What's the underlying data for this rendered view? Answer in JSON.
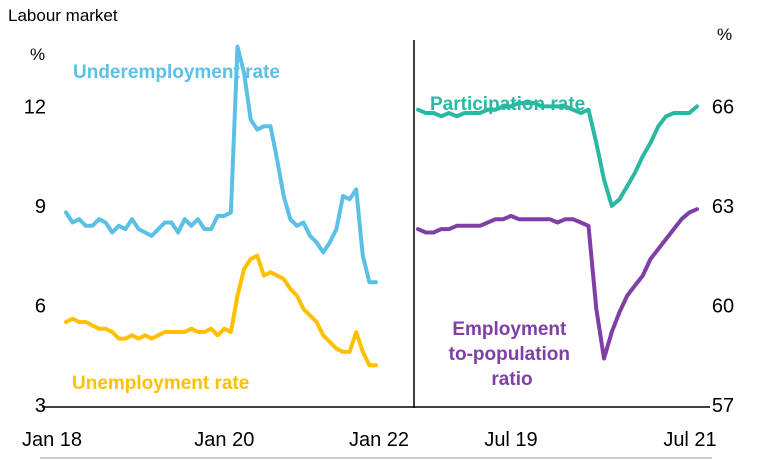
{
  "title": "Labour market",
  "colors": {
    "underemployment": "#5BC0E6",
    "unemployment": "#FFC000",
    "participation": "#2BB8A3",
    "employment": "#7F3FA6",
    "axis": "#000000",
    "bottom_rule": "#9a9a9a"
  },
  "chart_data": [
    {
      "type": "line",
      "title": "",
      "ylabel": "%",
      "ylim": [
        3,
        14
      ],
      "yticks": [
        "3",
        "6",
        "9",
        "12"
      ],
      "ytick_values": [
        3,
        6,
        9,
        12
      ],
      "xticks": [
        "Jan 18",
        "Jan 20",
        "Jan 22"
      ],
      "xtick_values": [
        0,
        24,
        48
      ],
      "x_range": [
        0,
        47
      ],
      "series": [
        {
          "name": "Underemployment rate",
          "color_key": "underemployment",
          "x": [
            0,
            1,
            2,
            3,
            4,
            5,
            6,
            7,
            8,
            9,
            10,
            11,
            12,
            13,
            14,
            15,
            16,
            17,
            18,
            19,
            20,
            21,
            22,
            23,
            24,
            25,
            26,
            27,
            28,
            29,
            30,
            31,
            32,
            33,
            34,
            35,
            36,
            37,
            38,
            39,
            40,
            41,
            42,
            43,
            44,
            45,
            46,
            47
          ],
          "values": [
            8.8,
            8.5,
            8.6,
            8.4,
            8.4,
            8.6,
            8.5,
            8.2,
            8.4,
            8.3,
            8.6,
            8.3,
            8.2,
            8.1,
            8.3,
            8.5,
            8.5,
            8.2,
            8.6,
            8.4,
            8.6,
            8.3,
            8.3,
            8.7,
            8.7,
            8.8,
            13.8,
            13.0,
            11.6,
            11.3,
            11.4,
            11.4,
            10.4,
            9.3,
            8.6,
            8.4,
            8.5,
            8.1,
            7.9,
            7.6,
            7.9,
            8.3,
            9.3,
            9.2,
            9.5,
            7.5,
            6.7,
            6.7
          ]
        },
        {
          "name": "Unemployment rate",
          "color_key": "unemployment",
          "x": [
            0,
            1,
            2,
            3,
            4,
            5,
            6,
            7,
            8,
            9,
            10,
            11,
            12,
            13,
            14,
            15,
            16,
            17,
            18,
            19,
            20,
            21,
            22,
            23,
            24,
            25,
            26,
            27,
            28,
            29,
            30,
            31,
            32,
            33,
            34,
            35,
            36,
            37,
            38,
            39,
            40,
            41,
            42,
            43,
            44,
            45,
            46,
            47
          ],
          "values": [
            5.5,
            5.6,
            5.5,
            5.5,
            5.4,
            5.3,
            5.3,
            5.2,
            5.0,
            5.0,
            5.1,
            5.0,
            5.1,
            5.0,
            5.1,
            5.2,
            5.2,
            5.2,
            5.2,
            5.3,
            5.2,
            5.2,
            5.3,
            5.1,
            5.3,
            5.2,
            6.3,
            7.1,
            7.4,
            7.5,
            6.9,
            7.0,
            6.9,
            6.8,
            6.5,
            6.3,
            5.9,
            5.7,
            5.5,
            5.1,
            4.9,
            4.7,
            4.6,
            4.6,
            5.2,
            4.6,
            4.2,
            4.2
          ]
        }
      ]
    },
    {
      "type": "line",
      "title": "",
      "ylabel": "%",
      "ylim": [
        57,
        68
      ],
      "yticks": [
        "57",
        "60",
        "63",
        "66"
      ],
      "ytick_values": [
        57,
        60,
        63,
        66
      ],
      "xticks": [
        "Jul 19",
        "Jul 21"
      ],
      "xtick_values": [
        12,
        36
      ],
      "x_range": [
        0,
        36
      ],
      "series": [
        {
          "name": "Participation rate",
          "color_key": "participation",
          "x": [
            0,
            1,
            2,
            3,
            4,
            5,
            6,
            7,
            8,
            9,
            10,
            11,
            12,
            13,
            14,
            15,
            16,
            17,
            18,
            19,
            20,
            21,
            22,
            23,
            24,
            25,
            26,
            27,
            28,
            29,
            30,
            31,
            32,
            33,
            34,
            35,
            36
          ],
          "values": [
            65.9,
            65.8,
            65.8,
            65.7,
            65.8,
            65.7,
            65.8,
            65.8,
            65.8,
            65.9,
            65.9,
            66.0,
            66.0,
            66.1,
            66.1,
            66.1,
            66.0,
            66.0,
            66.0,
            66.0,
            65.9,
            65.8,
            65.9,
            64.9,
            63.8,
            63.0,
            63.2,
            63.6,
            64.0,
            64.5,
            64.9,
            65.4,
            65.7,
            65.8,
            65.8,
            65.8,
            66.0
          ]
        },
        {
          "name": "Employment to-population ratio",
          "color_key": "employment",
          "x": [
            0,
            1,
            2,
            3,
            4,
            5,
            6,
            7,
            8,
            9,
            10,
            11,
            12,
            13,
            14,
            15,
            16,
            17,
            18,
            19,
            20,
            21,
            22,
            23,
            24,
            25,
            26,
            27,
            28,
            29,
            30,
            31,
            32,
            33,
            34,
            35,
            36
          ],
          "values": [
            62.3,
            62.2,
            62.2,
            62.3,
            62.3,
            62.4,
            62.4,
            62.4,
            62.4,
            62.5,
            62.6,
            62.6,
            62.7,
            62.6,
            62.6,
            62.6,
            62.6,
            62.6,
            62.5,
            62.6,
            62.6,
            62.5,
            62.4,
            59.9,
            58.4,
            59.2,
            59.8,
            60.3,
            60.6,
            60.9,
            61.4,
            61.7,
            62.0,
            62.3,
            62.6,
            62.8,
            62.9
          ]
        }
      ]
    }
  ],
  "labels": {
    "underemployment": "Underemployment rate",
    "unemployment": "Unemployment rate",
    "participation": "Participation rate",
    "employment_lines": [
      "Employment",
      "to-population",
      "ratio"
    ],
    "left_unit": "%",
    "right_unit": "%"
  }
}
